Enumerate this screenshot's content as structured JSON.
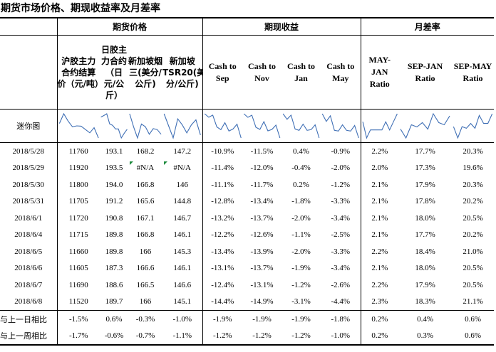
{
  "title": "期货市场价格、期现收益率及月差率",
  "groups": {
    "futures": "期货价格",
    "basis": "期现收益",
    "spread": "月差率"
  },
  "columns": [
    "沪胶主力合约结算价（元/吨）",
    "日胶主力合约（日元/公斤）",
    "新加坡烟三(美分/公斤)",
    "新加坡TSR20(美分/公斤)",
    "Cash to Sep",
    "Cash to Nov",
    "Cash to Jan",
    "Cash to May",
    "MAY-JAN Ratio",
    "SEP-JAN Ratio",
    "SEP-MAY Ratio"
  ],
  "sparkline_label": "迷你图",
  "rows": [
    {
      "date": "2018/5/28",
      "values": [
        "11760",
        "193.1",
        "168.2",
        "147.2",
        "-10.9%",
        "-11.5%",
        "0.4%",
        "-0.9%",
        "2.2%",
        "17.7%",
        "20.3%"
      ]
    },
    {
      "date": "2018/5/29",
      "values": [
        "11920",
        "193.5",
        "#N/A",
        "#N/A",
        "-11.4%",
        "-12.0%",
        "-0.4%",
        "-2.0%",
        "2.0%",
        "17.3%",
        "19.6%"
      ]
    },
    {
      "date": "2018/5/30",
      "values": [
        "11800",
        "194.0",
        "166.8",
        "146",
        "-11.1%",
        "-11.7%",
        "0.2%",
        "-1.2%",
        "2.1%",
        "17.9%",
        "20.3%"
      ]
    },
    {
      "date": "2018/5/31",
      "values": [
        "11705",
        "191.2",
        "165.6",
        "144.8",
        "-12.8%",
        "-13.4%",
        "-1.8%",
        "-3.3%",
        "2.1%",
        "17.8%",
        "20.2%"
      ]
    },
    {
      "date": "2018/6/1",
      "values": [
        "11720",
        "190.8",
        "167.1",
        "146.7",
        "-13.2%",
        "-13.7%",
        "-2.0%",
        "-3.4%",
        "2.1%",
        "18.0%",
        "20.5%"
      ]
    },
    {
      "date": "2018/6/4",
      "values": [
        "11715",
        "189.8",
        "166.8",
        "146.1",
        "-12.2%",
        "-12.6%",
        "-1.1%",
        "-2.5%",
        "2.1%",
        "17.7%",
        "20.2%"
      ]
    },
    {
      "date": "2018/6/5",
      "values": [
        "11660",
        "189.8",
        "166",
        "145.3",
        "-13.4%",
        "-13.9%",
        "-2.0%",
        "-3.3%",
        "2.2%",
        "18.4%",
        "21.0%"
      ]
    },
    {
      "date": "2018/6/6",
      "values": [
        "11605",
        "187.3",
        "166.6",
        "146.1",
        "-13.1%",
        "-13.7%",
        "-1.9%",
        "-3.4%",
        "2.1%",
        "18.0%",
        "20.5%"
      ]
    },
    {
      "date": "2018/6/7",
      "values": [
        "11690",
        "188.6",
        "166.5",
        "146.6",
        "-12.4%",
        "-13.1%",
        "-1.2%",
        "-2.6%",
        "2.2%",
        "17.9%",
        "20.5%"
      ]
    },
    {
      "date": "2018/6/8",
      "values": [
        "11520",
        "189.7",
        "166",
        "145.1",
        "-14.4%",
        "-14.9%",
        "-3.1%",
        "-4.4%",
        "2.3%",
        "18.3%",
        "21.1%"
      ]
    }
  ],
  "comparisons": [
    {
      "label": "与上一日相比",
      "values": [
        "-1.5%",
        "0.6%",
        "-0.3%",
        "-1.0%",
        "-1.9%",
        "-1.9%",
        "-1.9%",
        "-1.8%",
        "0.2%",
        "0.4%",
        "0.6%"
      ]
    },
    {
      "label": "与上一周相比",
      "values": [
        "-1.7%",
        "-0.6%",
        "-0.7%",
        "-1.1%",
        "-1.2%",
        "-1.2%",
        "-1.2%",
        "-1.0%",
        "0.2%",
        "0.3%",
        "0.6%"
      ]
    }
  ],
  "colors": {
    "sparkline": "#3f6fb5",
    "error_marker": "#1b8a3c"
  }
}
